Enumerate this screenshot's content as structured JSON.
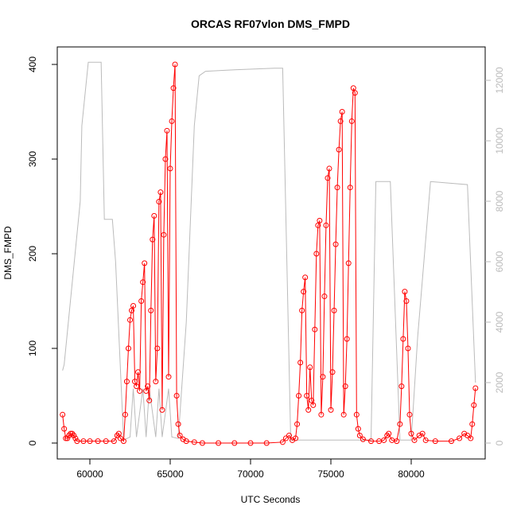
{
  "chart_data": {
    "type": "line",
    "title": "ORCAS RF07vlon DMS_FMPD",
    "x_label": "UTC Seconds",
    "y_label": "DMS_FMPD",
    "xlim": [
      57970,
      84604
    ],
    "xticks": [
      60000,
      65000,
      70000,
      75000,
      80000
    ],
    "ylim": [
      -16.8,
      418.5
    ],
    "yticks": [
      0,
      100,
      200,
      300,
      400
    ],
    "y2lim": [
      -526,
      13105
    ],
    "y2ticks": [
      0,
      2000,
      4000,
      6000,
      8000,
      10000,
      12000
    ],
    "y2_color": "#bbbbbb",
    "series": [
      {
        "color": "#ff0000",
        "marker": "circle",
        "x": [
          58300,
          58400,
          58500,
          58600,
          58700,
          58800,
          58900,
          59000,
          59100,
          59200,
          59600,
          60000,
          60500,
          61000,
          61500,
          61700,
          61800,
          61900,
          62100,
          62200,
          62300,
          62400,
          62500,
          62600,
          62700,
          62800,
          62900,
          63000,
          63100,
          63200,
          63300,
          63400,
          63500,
          63600,
          63700,
          63800,
          63900,
          64000,
          64100,
          64200,
          64300,
          64400,
          64500,
          64600,
          64700,
          64800,
          64900,
          65000,
          65100,
          65200,
          65300,
          65400,
          65500,
          65600,
          65800,
          66000,
          66500,
          67000,
          68000,
          69000,
          70000,
          71000,
          72000,
          72200,
          72400,
          72600,
          72800,
          72900,
          73000,
          73100,
          73200,
          73300,
          73400,
          73500,
          73600,
          73700,
          73800,
          73900,
          74000,
          74100,
          74200,
          74300,
          74400,
          74500,
          74600,
          74700,
          74800,
          74900,
          75000,
          75100,
          75200,
          75300,
          75400,
          75500,
          75600,
          75700,
          75800,
          75900,
          76000,
          76100,
          76200,
          76300,
          76400,
          76500,
          76600,
          76700,
          76800,
          77000,
          77500,
          78000,
          78300,
          78500,
          78600,
          78800,
          79100,
          79300,
          79400,
          79500,
          79600,
          79700,
          79800,
          79900,
          80000,
          80200,
          80500,
          80700,
          80900,
          81500,
          82500,
          83000,
          83300,
          83500,
          83700,
          83800,
          83900,
          84000
        ],
        "values": [
          30,
          15,
          5,
          5,
          8,
          10,
          10,
          8,
          5,
          2,
          2,
          2,
          2,
          2,
          2,
          8,
          10,
          5,
          2,
          30,
          65,
          100,
          130,
          140,
          145,
          65,
          60,
          75,
          55,
          150,
          170,
          190,
          55,
          60,
          45,
          140,
          215,
          240,
          65,
          100,
          255,
          265,
          35,
          220,
          300,
          330,
          70,
          290,
          340,
          375,
          400,
          50,
          20,
          8,
          4,
          2,
          1,
          0,
          0,
          0,
          0,
          0,
          1,
          5,
          8,
          3,
          5,
          20,
          50,
          85,
          140,
          160,
          175,
          50,
          35,
          80,
          45,
          40,
          120,
          200,
          230,
          235,
          30,
          70,
          155,
          230,
          280,
          290,
          35,
          75,
          140,
          210,
          270,
          310,
          340,
          350,
          30,
          60,
          110,
          190,
          270,
          340,
          375,
          370,
          30,
          15,
          8,
          4,
          2,
          2,
          3,
          8,
          10,
          3,
          2,
          20,
          60,
          110,
          160,
          150,
          100,
          30,
          10,
          3,
          8,
          10,
          3,
          2,
          2,
          5,
          10,
          8,
          5,
          20,
          40,
          58
        ]
      },
      {
        "color": "#bbbbbb",
        "axis": "y2",
        "x": [
          58300,
          58400,
          59400,
          59500,
          59900,
          60700,
          60900,
          61400,
          61600,
          62100,
          62500,
          62700,
          62900,
          63300,
          63500,
          63700,
          64100,
          64300,
          64500,
          64900,
          65100,
          65500,
          66000,
          66500,
          66800,
          67200,
          69000,
          71500,
          71700,
          72000,
          72500,
          73000,
          77500,
          77800,
          78700,
          79300,
          80000,
          80400,
          81200,
          83500,
          84000
        ],
        "values": [
          2400,
          2600,
          8000,
          10500,
          12600,
          12600,
          7400,
          7400,
          6000,
          100,
          200,
          1800,
          200,
          1800,
          200,
          1800,
          200,
          1800,
          200,
          1800,
          200,
          150,
          4000,
          10500,
          12150,
          12300,
          12350,
          12400,
          12400,
          12400,
          100,
          100,
          100,
          8650,
          8650,
          100,
          100,
          3500,
          8650,
          8550,
          2000
        ]
      }
    ]
  }
}
